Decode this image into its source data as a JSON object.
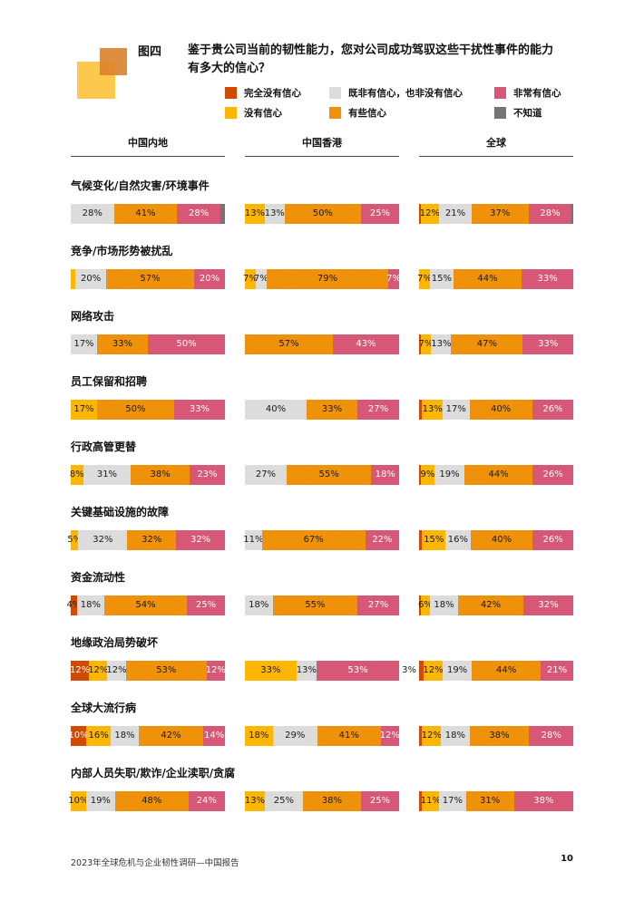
{
  "figure_tag": "图四",
  "title": {
    "line1": "鉴于贵公司当前的韧性能力，您对公司成功驾驭这些干扰性事件的能力",
    "line2": "有多大的信心？"
  },
  "colors": {
    "none": "#d04a02",
    "no": "#ffb600",
    "neutral": "#dcdcdc",
    "some": "#ef9209",
    "very": "#d65876",
    "dk": "#757575"
  },
  "text_on": {
    "none": "#ffffff",
    "no": "#1a1a1a",
    "neutral": "#1a1a1a",
    "some": "#1a1a1a",
    "very": "#ffffff",
    "dk": "#ffffff"
  },
  "legend": {
    "items": [
      {
        "label": "完全没有信心",
        "color": "none"
      },
      {
        "label": "没有信心",
        "color": "no"
      },
      {
        "label": "既非有信心，也非没有信心",
        "color": "neutral"
      },
      {
        "label": "有些信心",
        "color": "some"
      },
      {
        "label": "非常有信心",
        "color": "very"
      },
      {
        "label": "不知道",
        "color": "dk"
      }
    ]
  },
  "columns": [
    "中国内地",
    "中国香港",
    "全球"
  ],
  "footer": {
    "source": "2023年全球危机与企业韧性调研—中国报告",
    "page": "10"
  },
  "chart_data": {
    "type": "bar",
    "subtype": "horizontal-stacked-100pct",
    "groups": [
      "中国内地",
      "中国香港",
      "全球"
    ],
    "series_legend": {
      "none": "完全没有信心",
      "no": "没有信心",
      "neutral": "既非有信心，也非没有信心",
      "some": "有些信心",
      "very": "非常有信心",
      "dk": "不知道"
    },
    "rows": [
      {
        "label": "气候变化/自然灾害/环境事件",
        "bars": [
          [
            {
              "c": "neutral",
              "v": 28,
              "t": "28%"
            },
            {
              "c": "some",
              "v": 41,
              "t": "41%"
            },
            {
              "c": "very",
              "v": 28,
              "t": "28%"
            },
            {
              "c": "dk",
              "v": 3,
              "t": ""
            }
          ],
          [
            {
              "c": "no",
              "v": 13,
              "t": "13%"
            },
            {
              "c": "neutral",
              "v": 13,
              "t": "13%"
            },
            {
              "c": "some",
              "v": 50,
              "t": "50%"
            },
            {
              "c": "very",
              "v": 25,
              "t": "25%"
            }
          ],
          [
            {
              "c": "none",
              "v": 1,
              "t": ""
            },
            {
              "c": "no",
              "v": 12,
              "t": "12%"
            },
            {
              "c": "neutral",
              "v": 21,
              "t": "21%"
            },
            {
              "c": "some",
              "v": 37,
              "t": "37%"
            },
            {
              "c": "very",
              "v": 28,
              "t": "28%"
            },
            {
              "c": "dk",
              "v": 1,
              "t": ""
            }
          ]
        ]
      },
      {
        "label": "竞争/市场形势被扰乱",
        "bars": [
          [
            {
              "c": "no",
              "v": 3,
              "t": ""
            },
            {
              "c": "neutral",
              "v": 20,
              "t": "20%"
            },
            {
              "c": "some",
              "v": 57,
              "t": "57%"
            },
            {
              "c": "very",
              "v": 20,
              "t": "20%"
            }
          ],
          [
            {
              "c": "no",
              "v": 7,
              "t": "7%"
            },
            {
              "c": "neutral",
              "v": 7,
              "t": "7%"
            },
            {
              "c": "some",
              "v": 79,
              "t": "79%"
            },
            {
              "c": "very",
              "v": 7,
              "t": "7%"
            }
          ],
          [
            {
              "c": "no",
              "v": 7,
              "t": "7%"
            },
            {
              "c": "neutral",
              "v": 15,
              "t": "15%"
            },
            {
              "c": "some",
              "v": 44,
              "t": "44%"
            },
            {
              "c": "very",
              "v": 33,
              "t": "33%"
            }
          ]
        ]
      },
      {
        "label": "网络攻击",
        "bars": [
          [
            {
              "c": "neutral",
              "v": 17,
              "t": "17%"
            },
            {
              "c": "some",
              "v": 33,
              "t": "33%"
            },
            {
              "c": "very",
              "v": 50,
              "t": "50%"
            }
          ],
          [
            {
              "c": "some",
              "v": 57,
              "t": "57%"
            },
            {
              "c": "very",
              "v": 43,
              "t": "43%"
            }
          ],
          [
            {
              "c": "none",
              "v": 1,
              "t": ""
            },
            {
              "c": "no",
              "v": 7,
              "t": "7%"
            },
            {
              "c": "neutral",
              "v": 13,
              "t": "13%"
            },
            {
              "c": "some",
              "v": 47,
              "t": "47%"
            },
            {
              "c": "very",
              "v": 33,
              "t": "33%"
            }
          ]
        ]
      },
      {
        "label": "员工保留和招聘",
        "bars": [
          [
            {
              "c": "no",
              "v": 17,
              "t": "17%"
            },
            {
              "c": "some",
              "v": 50,
              "t": "50%"
            },
            {
              "c": "very",
              "v": 33,
              "t": "33%"
            }
          ],
          [
            {
              "c": "neutral",
              "v": 40,
              "t": "40%"
            },
            {
              "c": "some",
              "v": 33,
              "t": "33%"
            },
            {
              "c": "very",
              "v": 27,
              "t": "27%"
            }
          ],
          [
            {
              "c": "none",
              "v": 2,
              "t": ""
            },
            {
              "c": "no",
              "v": 13,
              "t": "13%"
            },
            {
              "c": "neutral",
              "v": 17,
              "t": "17%"
            },
            {
              "c": "some",
              "v": 40,
              "t": "40%"
            },
            {
              "c": "very",
              "v": 26,
              "t": "26%"
            }
          ]
        ]
      },
      {
        "label": "行政高管更替",
        "bars": [
          [
            {
              "c": "no",
              "v": 8,
              "t": "8%"
            },
            {
              "c": "neutral",
              "v": 31,
              "t": "31%"
            },
            {
              "c": "some",
              "v": 38,
              "t": "38%"
            },
            {
              "c": "very",
              "v": 23,
              "t": "23%"
            }
          ],
          [
            {
              "c": "neutral",
              "v": 27,
              "t": "27%"
            },
            {
              "c": "some",
              "v": 55,
              "t": "55%"
            },
            {
              "c": "very",
              "v": 18,
              "t": "18%"
            }
          ],
          [
            {
              "c": "none",
              "v": 1,
              "t": ""
            },
            {
              "c": "no",
              "v": 9,
              "t": "9%"
            },
            {
              "c": "neutral",
              "v": 19,
              "t": "19%"
            },
            {
              "c": "some",
              "v": 44,
              "t": "44%"
            },
            {
              "c": "very",
              "v": 26,
              "t": "26%"
            }
          ]
        ]
      },
      {
        "label": "关键基础设施的故障",
        "bars": [
          [
            {
              "c": "no",
              "v": 5,
              "t": "5%"
            },
            {
              "c": "neutral",
              "v": 32,
              "t": "32%"
            },
            {
              "c": "some",
              "v": 32,
              "t": "32%"
            },
            {
              "c": "very",
              "v": 32,
              "t": "32%"
            }
          ],
          [
            {
              "c": "neutral",
              "v": 11,
              "t": "11%"
            },
            {
              "c": "some",
              "v": 67,
              "t": "67%"
            },
            {
              "c": "very",
              "v": 22,
              "t": "22%"
            }
          ],
          [
            {
              "c": "none",
              "v": 2,
              "t": ""
            },
            {
              "c": "no",
              "v": 15,
              "t": "15%"
            },
            {
              "c": "neutral",
              "v": 16,
              "t": "16%"
            },
            {
              "c": "some",
              "v": 40,
              "t": "40%"
            },
            {
              "c": "very",
              "v": 26,
              "t": "26%"
            }
          ]
        ]
      },
      {
        "label": "资金流动性",
        "bars": [
          [
            {
              "c": "none",
              "v": 4,
              "t": "4%",
              "tc": "#1a1a1a"
            },
            {
              "c": "neutral",
              "v": 18,
              "t": "18%"
            },
            {
              "c": "some",
              "v": 54,
              "t": "54%"
            },
            {
              "c": "very",
              "v": 25,
              "t": "25%"
            }
          ],
          [
            {
              "c": "neutral",
              "v": 18,
              "t": "18%"
            },
            {
              "c": "some",
              "v": 55,
              "t": "55%"
            },
            {
              "c": "very",
              "v": 27,
              "t": "27%"
            }
          ],
          [
            {
              "c": "none",
              "v": 1,
              "t": ""
            },
            {
              "c": "no",
              "v": 6,
              "t": "6%"
            },
            {
              "c": "neutral",
              "v": 18,
              "t": "18%"
            },
            {
              "c": "some",
              "v": 42,
              "t": "42%"
            },
            {
              "c": "very",
              "v": 32,
              "t": "32%"
            }
          ]
        ]
      },
      {
        "label": "地缘政治局势破坏",
        "bars": [
          [
            {
              "c": "none",
              "v": 12,
              "t": "12%"
            },
            {
              "c": "no",
              "v": 12,
              "t": "12%"
            },
            {
              "c": "neutral",
              "v": 12,
              "t": "12%"
            },
            {
              "c": "some",
              "v": 53,
              "t": "53%"
            },
            {
              "c": "very",
              "v": 12,
              "t": "12%"
            }
          ],
          [
            {
              "c": "no",
              "v": 33,
              "t": "33%"
            },
            {
              "c": "neutral",
              "v": 13,
              "t": "13%"
            },
            {
              "c": "very",
              "v": 53,
              "t": "53%"
            }
          ],
          [
            {
              "c": "none",
              "v": 3,
              "t": "3%",
              "out": true
            },
            {
              "c": "no",
              "v": 12,
              "t": "12%"
            },
            {
              "c": "neutral",
              "v": 19,
              "t": "19%"
            },
            {
              "c": "some",
              "v": 44,
              "t": "44%"
            },
            {
              "c": "very",
              "v": 21,
              "t": "21%"
            }
          ]
        ]
      },
      {
        "label": "全球大流行病",
        "bars": [
          [
            {
              "c": "none",
              "v": 10,
              "t": "10%"
            },
            {
              "c": "no",
              "v": 16,
              "t": "16%"
            },
            {
              "c": "neutral",
              "v": 18,
              "t": "18%"
            },
            {
              "c": "some",
              "v": 42,
              "t": "42%"
            },
            {
              "c": "very",
              "v": 14,
              "t": "14%"
            }
          ],
          [
            {
              "c": "no",
              "v": 18,
              "t": "18%"
            },
            {
              "c": "neutral",
              "v": 29,
              "t": "29%"
            },
            {
              "c": "some",
              "v": 41,
              "t": "41%"
            },
            {
              "c": "very",
              "v": 12,
              "t": "12%"
            }
          ],
          [
            {
              "c": "none",
              "v": 2,
              "t": ""
            },
            {
              "c": "no",
              "v": 12,
              "t": "12%"
            },
            {
              "c": "neutral",
              "v": 18,
              "t": "18%"
            },
            {
              "c": "some",
              "v": 38,
              "t": "38%"
            },
            {
              "c": "very",
              "v": 28,
              "t": "28%"
            }
          ]
        ]
      },
      {
        "label": "内部人员失职/欺诈/企业渎职/贪腐",
        "bars": [
          [
            {
              "c": "no",
              "v": 10,
              "t": "10%"
            },
            {
              "c": "neutral",
              "v": 19,
              "t": "19%"
            },
            {
              "c": "some",
              "v": 48,
              "t": "48%"
            },
            {
              "c": "very",
              "v": 24,
              "t": "24%"
            }
          ],
          [
            {
              "c": "no",
              "v": 13,
              "t": "13%"
            },
            {
              "c": "neutral",
              "v": 25,
              "t": "25%"
            },
            {
              "c": "some",
              "v": 38,
              "t": "38%"
            },
            {
              "c": "very",
              "v": 25,
              "t": "25%"
            }
          ],
          [
            {
              "c": "none",
              "v": 2,
              "t": ""
            },
            {
              "c": "no",
              "v": 11,
              "t": "11%"
            },
            {
              "c": "neutral",
              "v": 17,
              "t": "17%"
            },
            {
              "c": "some",
              "v": 31,
              "t": "31%"
            },
            {
              "c": "very",
              "v": 38,
              "t": "38%"
            }
          ]
        ]
      }
    ]
  }
}
